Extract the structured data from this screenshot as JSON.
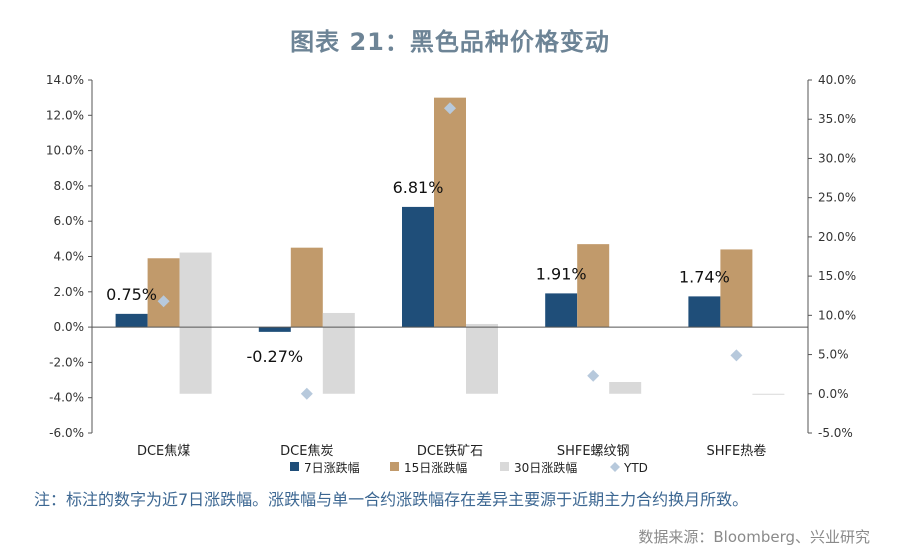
{
  "chart_data": {
    "type": "bar",
    "title": "图表 21：黑色品种价格变动",
    "categories": [
      "DCE焦煤",
      "DCE焦炭",
      "DCE铁矿石",
      "SHFE螺纹钢",
      "SHFE热卷"
    ],
    "series": [
      {
        "name": "7日涨跌幅",
        "axis": "left",
        "color": "#1f4e79",
        "values": [
          0.75,
          -0.27,
          6.81,
          1.91,
          1.74
        ]
      },
      {
        "name": "15日涨跌幅",
        "axis": "left",
        "color": "#c19a6b",
        "values": [
          3.9,
          4.5,
          13.0,
          4.7,
          4.4
        ]
      },
      {
        "name": "30日涨跌幅",
        "axis": "right",
        "color": "#d9d9d9",
        "values": [
          18.0,
          10.3,
          8.9,
          1.5,
          -0.1
        ]
      },
      {
        "name": "YTD",
        "axis": "right",
        "type": "scatter",
        "color": "#b7c9dc",
        "values": [
          11.8,
          0.0,
          36.4,
          2.3,
          4.9
        ]
      }
    ],
    "data_labels": [
      "0.75%",
      "-0.27%",
      "6.81%",
      "1.91%",
      "1.74%"
    ],
    "y_left": {
      "min": -6,
      "max": 14,
      "step": 2,
      "ticks": [
        "-6.0%",
        "-4.0%",
        "-2.0%",
        "0.0%",
        "2.0%",
        "4.0%",
        "6.0%",
        "8.0%",
        "10.0%",
        "12.0%",
        "14.0%"
      ]
    },
    "y_right": {
      "min": -5,
      "max": 40,
      "step": 5,
      "ticks": [
        "-5.0%",
        "0.0%",
        "5.0%",
        "10.0%",
        "15.0%",
        "20.0%",
        "25.0%",
        "30.0%",
        "35.0%",
        "40.0%"
      ]
    },
    "legend_position": "bottom"
  },
  "note": "注：标注的数字为近7日涨跌幅。涨跌幅与单一合约涨跌幅存在差异主要源于近期主力合约换月所致。",
  "source": "数据来源：Bloomberg、兴业研究"
}
